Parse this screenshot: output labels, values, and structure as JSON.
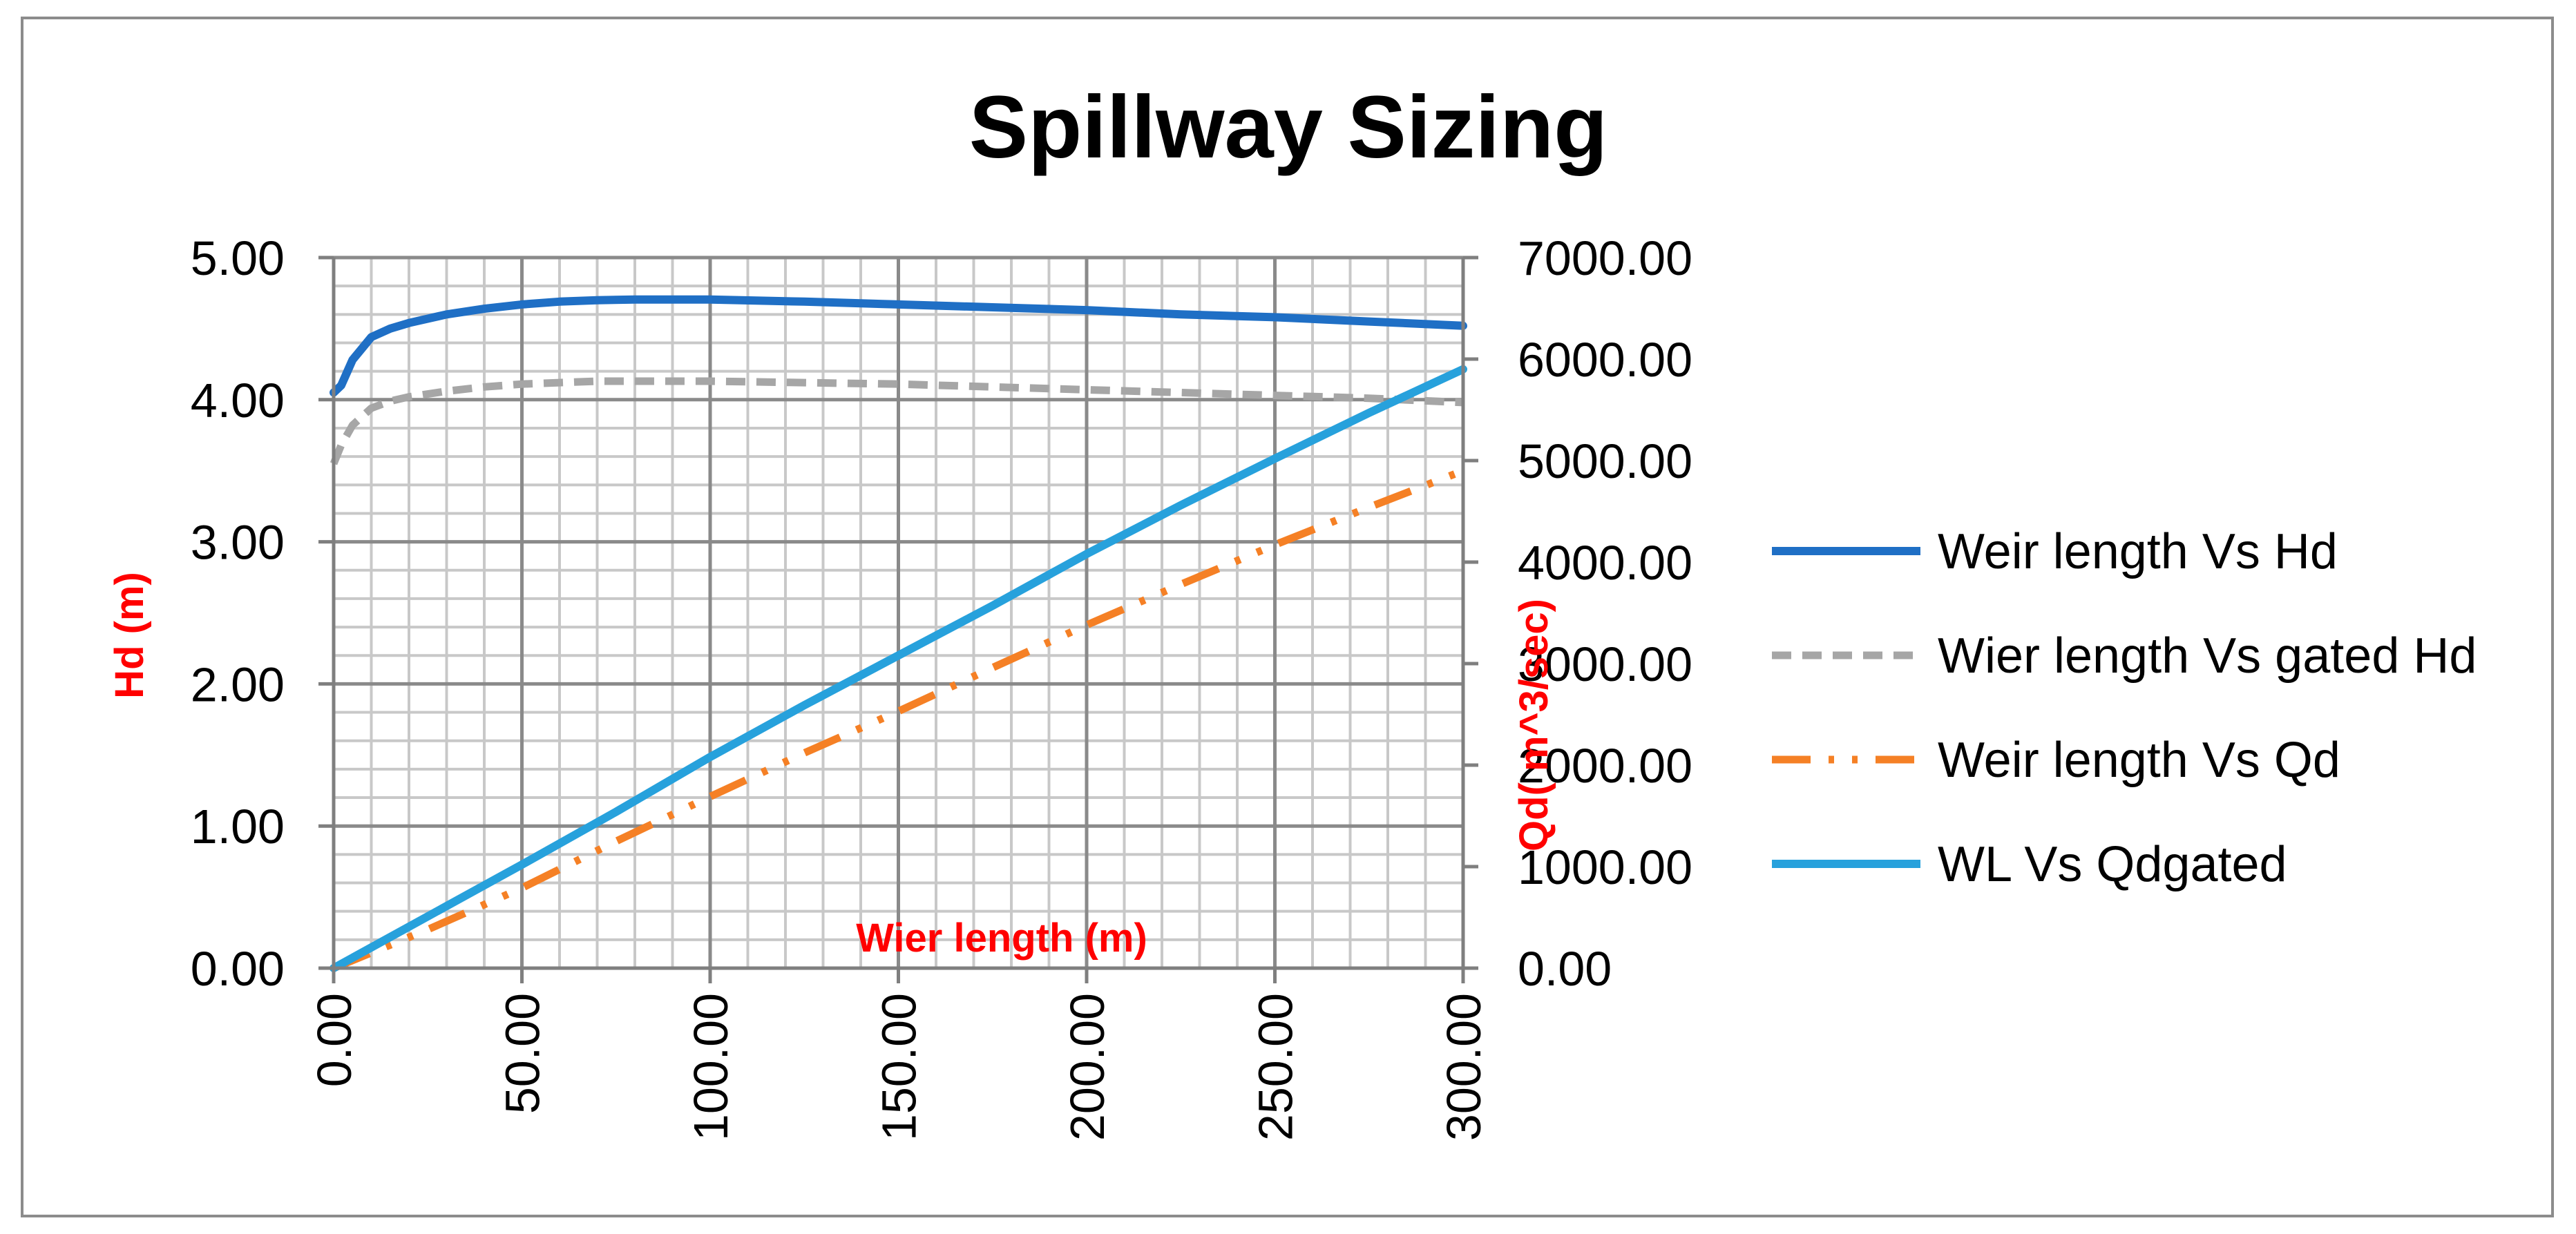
{
  "chart_data": {
    "type": "line",
    "title": "Spillway Sizing",
    "xlabel": "Wier length (m)",
    "ylabel": "Hd (m)",
    "y2label": "Qd( m^3/sec)",
    "xlim": [
      0,
      300
    ],
    "ylim": [
      0,
      5
    ],
    "y2lim": [
      0,
      7000
    ],
    "x_ticks": [
      "0.00",
      "50.00",
      "100.00",
      "150.00",
      "200.00",
      "250.00",
      "300.00"
    ],
    "y_ticks": [
      "0.00",
      "1.00",
      "2.00",
      "3.00",
      "4.00",
      "5.00"
    ],
    "y2_ticks": [
      "0.00",
      "1000.00",
      "2000.00",
      "3000.00",
      "4000.00",
      "5000.00",
      "6000.00",
      "7000.00"
    ],
    "grid": true,
    "legend_position": "right",
    "series": [
      {
        "name": "Weir length Vs Hd",
        "axis": "left",
        "color": "#1f6fc5",
        "style": "solid",
        "x": [
          0,
          2,
          5,
          10,
          15,
          20,
          30,
          40,
          50,
          60,
          70,
          80,
          90,
          100,
          125,
          150,
          175,
          200,
          225,
          250,
          275,
          300
        ],
        "y": [
          4.05,
          4.1,
          4.28,
          4.44,
          4.5,
          4.54,
          4.6,
          4.64,
          4.67,
          4.69,
          4.7,
          4.705,
          4.705,
          4.705,
          4.69,
          4.67,
          4.65,
          4.63,
          4.6,
          4.58,
          4.55,
          4.52
        ]
      },
      {
        "name": "Wier length Vs gated Hd",
        "axis": "left",
        "color": "#a6a6a6",
        "style": "dashed",
        "x": [
          0,
          2,
          5,
          10,
          15,
          20,
          30,
          40,
          50,
          60,
          70,
          80,
          90,
          100,
          125,
          150,
          175,
          200,
          225,
          250,
          275,
          300
        ],
        "y": [
          3.55,
          3.68,
          3.82,
          3.94,
          3.99,
          4.02,
          4.06,
          4.09,
          4.11,
          4.12,
          4.13,
          4.13,
          4.13,
          4.13,
          4.12,
          4.11,
          4.09,
          4.07,
          4.05,
          4.03,
          4.01,
          3.98
        ]
      },
      {
        "name": "Weir length Vs Qd",
        "axis": "right",
        "color": "#f58025",
        "style": "dashdotdot",
        "x": [
          0,
          25,
          50,
          75,
          100,
          125,
          150,
          175,
          200,
          225,
          250,
          275,
          300
        ],
        "y": [
          0,
          380,
          790,
          1250,
          1690,
          2120,
          2530,
          2960,
          3380,
          3780,
          4170,
          4540,
          4900
        ]
      },
      {
        "name": "WL Vs Qdgated",
        "axis": "right",
        "color": "#27a1dc",
        "style": "solid",
        "x": [
          0,
          25,
          50,
          75,
          100,
          125,
          150,
          175,
          200,
          225,
          250,
          275,
          300
        ],
        "y": [
          0,
          510,
          1020,
          1540,
          2080,
          2590,
          3080,
          3570,
          4080,
          4560,
          5020,
          5470,
          5900
        ]
      }
    ]
  }
}
